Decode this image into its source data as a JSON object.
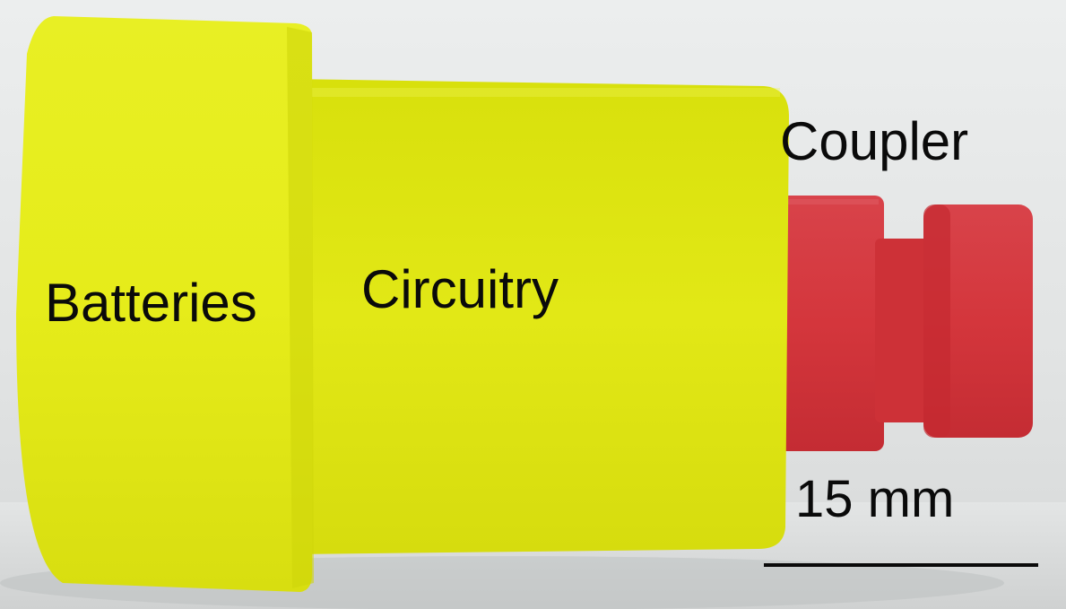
{
  "labels": {
    "batteries": "Batteries",
    "circuitry": "Circuitry",
    "coupler": "Coupler",
    "scale": "15 mm"
  },
  "colors": {
    "background": "#e4e6e6",
    "housing": "#e4ea1c",
    "coupler": "#d83a3e",
    "text": "#0a0a0a"
  }
}
